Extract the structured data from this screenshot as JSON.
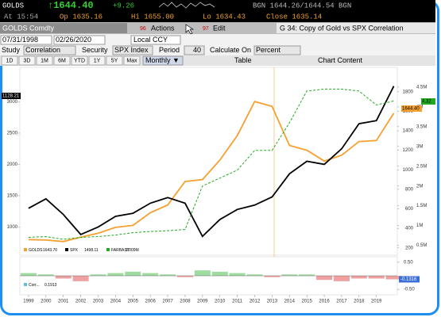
{
  "ticker_bar": {
    "security": "GOLDS",
    "last": "↑1644.40",
    "change": "+9.26",
    "quote": "BGN 1644.26/1644.54 BGN"
  },
  "quote_bar": {
    "time": "At 15:54",
    "open": "Op 1635.16",
    "high": "Hi 1655.00",
    "low": "Lo 1634.43",
    "close": "Close 1635.14"
  },
  "title_bar": {
    "security": "GOLDS Comdty",
    "actions_code": "96",
    "actions": "Actions",
    "edit_code": "97",
    "edit": "Edit",
    "page_title": "G 34: Copy of Gold vs SPX Correlation"
  },
  "range_bar": {
    "start": "07/31/1998",
    "end": "02/26/2020",
    "currency": "Local CCY"
  },
  "study_bar": {
    "study_label": "Study",
    "study": "Correlation",
    "security_label": "Security",
    "security": "SPX Index",
    "period_label": "Period",
    "period": "40",
    "calculate_label": "Calculate On",
    "calculate": "Percent"
  },
  "toolbar": {
    "ranges": [
      "1D",
      "3D",
      "1M",
      "6M",
      "YTD",
      "1Y",
      "5Y",
      "Max"
    ],
    "frequency": "Monthly ▼",
    "table": "Table",
    "chart_content": "Chart Content"
  },
  "chart_data": [
    {
      "type": "line",
      "x": [
        1999,
        2000,
        2001,
        2002,
        2003,
        2004,
        2005,
        2006,
        2007,
        2008,
        2009,
        2010,
        2011,
        2012,
        2013,
        2014,
        2015,
        2016,
        2017,
        2018,
        2019,
        2020
      ],
      "xlim": [
        1998.5,
        2020.2
      ],
      "ylim": [
        550,
        3550
      ],
      "yticks": [
        1000,
        1500,
        2000,
        2500,
        3000
      ],
      "y2lim": [
        125,
        2050
      ],
      "y2ticks": [
        200,
        400,
        600,
        800,
        1000,
        1200,
        1400,
        1600,
        1800
      ],
      "y3lim": [
        250000,
        5000000
      ],
      "y3ticks": [
        {
          "value": 500000,
          "label": "0.5M"
        },
        {
          "value": 1000000,
          "label": "1M"
        },
        {
          "value": 1500000,
          "label": "1.5M"
        },
        {
          "value": 2000000,
          "label": "2M"
        },
        {
          "value": 2500000,
          "label": "2.5M"
        },
        {
          "value": 3000000,
          "label": "3M"
        },
        {
          "value": 3500000,
          "label": "3.5M"
        },
        {
          "value": 4000000,
          "label": "4M"
        },
        {
          "value": 4500000,
          "label": "4.5M"
        }
      ],
      "cursor_label": "1128.21",
      "series": [
        {
          "name": "GOLDS",
          "legend_value": "1643.70",
          "last_label": "1644.40",
          "color": "#f5a030",
          "axis": "y2",
          "values": [
            285,
            280,
            265,
            310,
            350,
            410,
            430,
            560,
            640,
            880,
            900,
            1100,
            1350,
            1700,
            1650,
            1250,
            1200,
            1090,
            1150,
            1290,
            1300,
            1580
          ]
        },
        {
          "name": "SPX",
          "legend_value": "1498.11",
          "color": "#000000",
          "values": [
            1300,
            1450,
            1200,
            880,
            1000,
            1170,
            1220,
            1380,
            1470,
            1380,
            850,
            1120,
            1280,
            1350,
            1480,
            1850,
            2050,
            2000,
            2250,
            2650,
            2700,
            3250
          ]
        },
        {
          "name": "FARBAST",
          "legend_value": "3.009M",
          "last_label": "4.32",
          "color": "#22aa22",
          "axis": "y3",
          "dashed": true,
          "values": [
            700000,
            720000,
            650000,
            700000,
            720000,
            760000,
            820000,
            850000,
            870000,
            900000,
            2000000,
            2200000,
            2400000,
            2900000,
            2900000,
            3600000,
            4400000,
            4450000,
            4450000,
            4400000,
            4050000,
            4150000
          ]
        }
      ]
    },
    {
      "type": "bar",
      "x": [
        1999,
        2000,
        2001,
        2002,
        2003,
        2004,
        2005,
        2006,
        2007,
        2008,
        2009,
        2010,
        2011,
        2012,
        2013,
        2014,
        2015,
        2016,
        2017,
        2018,
        2019,
        2020
      ],
      "xlim": [
        1998.5,
        2020.2
      ],
      "xticks": [
        1999,
        2000,
        2001,
        2002,
        2003,
        2004,
        2005,
        2006,
        2007,
        2008,
        2009,
        2010,
        2011,
        2012,
        2013,
        2014,
        2015,
        2016,
        2017,
        2018,
        2019
      ],
      "ylim": [
        -0.7,
        0.7
      ],
      "yticks": [
        {
          "value": -0.5,
          "label": "-0.50"
        },
        {
          "value": 0.5,
          "label": "0.50"
        }
      ],
      "name": "Corr...",
      "legend_value": "0.1913",
      "last_label": "-0.1316",
      "positive_color": "#9fdc9f",
      "negative_color": "#f0a0a0",
      "values": [
        0.1,
        0.05,
        -0.1,
        -0.2,
        0.05,
        0.1,
        0.15,
        0.1,
        0.05,
        -0.05,
        0.2,
        0.15,
        0.1,
        0.05,
        -0.05,
        0.05,
        0.05,
        -0.15,
        -0.2,
        -0.1,
        -0.1,
        -0.13
      ]
    }
  ]
}
